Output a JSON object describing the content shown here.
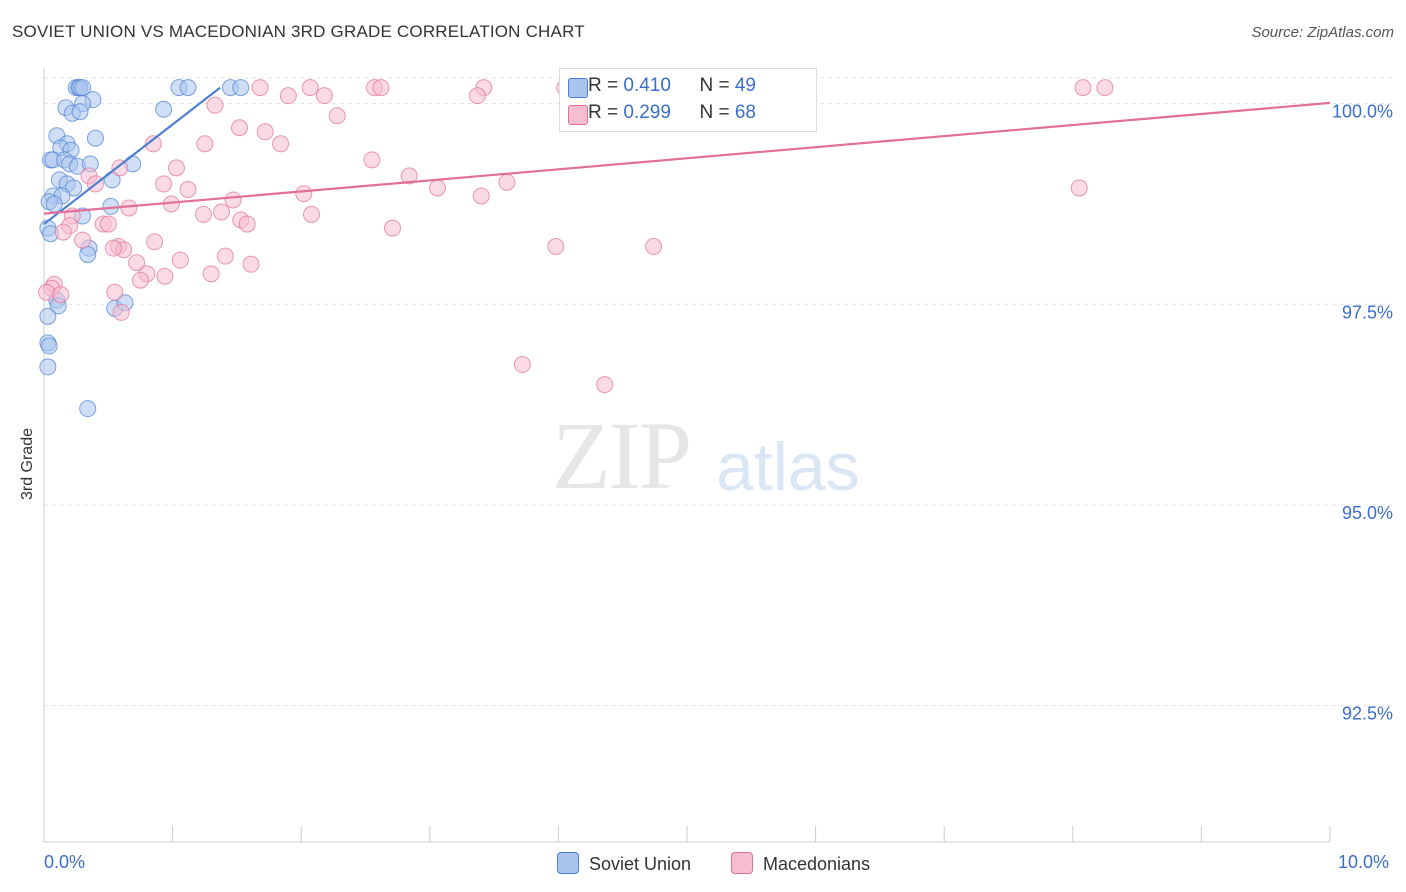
{
  "header": {
    "title": "SOVIET UNION VS MACEDONIAN 3RD GRADE CORRELATION CHART",
    "source": "Source: ZipAtlas.com"
  },
  "watermark": {
    "zip": "ZIP",
    "atlas": "atlas"
  },
  "legend": {
    "rows": [
      {
        "r_label": "R = ",
        "r_value": "0.410",
        "n_label": "N = ",
        "n_value": "49"
      },
      {
        "r_label": "R = ",
        "r_value": "0.299",
        "n_label": "N = ",
        "n_value": "68"
      }
    ]
  },
  "bottom_legend": [
    "Soviet Union",
    "Macedonians"
  ],
  "x_axis": {
    "min_label": "0.0%",
    "max_label": "10.0%"
  },
  "colors": {
    "blue": "#4a7fd1",
    "blue_fill": "#a9c5ee",
    "pink": "#e07097",
    "pink_fill": "#f6bccf",
    "grid": "#e3e3e3",
    "tick_label": "#3a6fc9"
  },
  "chart_data": {
    "type": "scatter",
    "title": "SOVIET UNION VS MACEDONIAN 3RD GRADE CORRELATION CHART",
    "xlabel": "",
    "ylabel": "3rd Grade",
    "xlim": [
      0,
      10
    ],
    "ylim": [
      90.8,
      100.32
    ],
    "y_ticks": [
      100.0,
      97.5,
      95.0,
      92.5
    ],
    "y_tick_labels": [
      "100.0%",
      "97.5%",
      "95.0%",
      "92.5%"
    ],
    "grid": true,
    "legend_position": "top-center",
    "series": [
      {
        "name": "Soviet Union",
        "r": 0.41,
        "n": 49,
        "trend": {
          "x": [
            0.0,
            1.37
          ],
          "y": [
            98.5,
            100.2
          ]
        },
        "points": [
          [
            0.25,
            100.2
          ],
          [
            0.27,
            100.2
          ],
          [
            0.28,
            100.2
          ],
          [
            0.3,
            100.2
          ],
          [
            1.05,
            100.2
          ],
          [
            1.12,
            100.2
          ],
          [
            1.45,
            100.2
          ],
          [
            1.53,
            100.2
          ],
          [
            0.38,
            100.05
          ],
          [
            0.3,
            100.0
          ],
          [
            0.17,
            99.95
          ],
          [
            0.22,
            99.88
          ],
          [
            0.28,
            99.9
          ],
          [
            0.93,
            99.93
          ],
          [
            0.1,
            99.6
          ],
          [
            0.4,
            99.57
          ],
          [
            0.18,
            99.5
          ],
          [
            0.13,
            99.45
          ],
          [
            0.21,
            99.42
          ],
          [
            0.05,
            99.3
          ],
          [
            0.07,
            99.3
          ],
          [
            0.16,
            99.3
          ],
          [
            0.2,
            99.25
          ],
          [
            0.26,
            99.22
          ],
          [
            0.36,
            99.25
          ],
          [
            0.69,
            99.25
          ],
          [
            0.12,
            99.05
          ],
          [
            0.18,
            99.0
          ],
          [
            0.23,
            98.95
          ],
          [
            0.07,
            98.85
          ],
          [
            0.14,
            98.85
          ],
          [
            0.53,
            99.05
          ],
          [
            0.04,
            98.78
          ],
          [
            0.08,
            98.75
          ],
          [
            0.3,
            98.6
          ],
          [
            0.52,
            98.72
          ],
          [
            0.03,
            98.45
          ],
          [
            0.05,
            98.38
          ],
          [
            0.35,
            98.2
          ],
          [
            0.34,
            98.12
          ],
          [
            0.1,
            97.55
          ],
          [
            0.11,
            97.48
          ],
          [
            0.55,
            97.45
          ],
          [
            0.63,
            97.52
          ],
          [
            0.03,
            97.35
          ],
          [
            0.03,
            97.02
          ],
          [
            0.04,
            96.98
          ],
          [
            0.03,
            96.72
          ],
          [
            0.34,
            96.2
          ]
        ]
      },
      {
        "name": "Macedonians",
        "r": 0.299,
        "n": 68,
        "trend": {
          "x": [
            0.0,
            10.0
          ],
          "y": [
            98.63,
            100.01
          ]
        },
        "points": [
          [
            1.68,
            100.2
          ],
          [
            2.07,
            100.2
          ],
          [
            2.57,
            100.2
          ],
          [
            2.62,
            100.2
          ],
          [
            3.42,
            100.2
          ],
          [
            4.05,
            100.2
          ],
          [
            8.08,
            100.2
          ],
          [
            8.25,
            100.2
          ],
          [
            1.9,
            100.1
          ],
          [
            2.18,
            100.1
          ],
          [
            3.37,
            100.1
          ],
          [
            1.33,
            99.98
          ],
          [
            2.28,
            99.85
          ],
          [
            1.52,
            99.7
          ],
          [
            1.72,
            99.65
          ],
          [
            0.85,
            99.5
          ],
          [
            1.25,
            99.5
          ],
          [
            1.84,
            99.5
          ],
          [
            2.55,
            99.3
          ],
          [
            2.84,
            99.1
          ],
          [
            1.03,
            99.2
          ],
          [
            0.59,
            99.2
          ],
          [
            0.35,
            99.1
          ],
          [
            0.4,
            99.0
          ],
          [
            0.93,
            99.0
          ],
          [
            1.12,
            98.93
          ],
          [
            2.02,
            98.88
          ],
          [
            3.06,
            98.95
          ],
          [
            3.6,
            99.02
          ],
          [
            3.4,
            98.85
          ],
          [
            8.05,
            98.95
          ],
          [
            0.66,
            98.7
          ],
          [
            0.99,
            98.75
          ],
          [
            1.47,
            98.8
          ],
          [
            1.24,
            98.62
          ],
          [
            0.22,
            98.6
          ],
          [
            1.38,
            98.65
          ],
          [
            1.53,
            98.55
          ],
          [
            2.08,
            98.62
          ],
          [
            0.46,
            98.5
          ],
          [
            0.5,
            98.5
          ],
          [
            1.58,
            98.5
          ],
          [
            0.2,
            98.48
          ],
          [
            0.15,
            98.4
          ],
          [
            0.3,
            98.3
          ],
          [
            2.71,
            98.45
          ],
          [
            0.86,
            98.28
          ],
          [
            0.58,
            98.22
          ],
          [
            0.62,
            98.18
          ],
          [
            0.54,
            98.2
          ],
          [
            0.72,
            98.02
          ],
          [
            0.8,
            97.88
          ],
          [
            1.06,
            98.05
          ],
          [
            1.41,
            98.1
          ],
          [
            1.61,
            98.0
          ],
          [
            1.3,
            97.88
          ],
          [
            0.94,
            97.85
          ],
          [
            0.75,
            97.8
          ],
          [
            0.55,
            97.65
          ],
          [
            0.08,
            97.75
          ],
          [
            0.06,
            97.7
          ],
          [
            0.02,
            97.65
          ],
          [
            0.13,
            97.62
          ],
          [
            3.98,
            98.22
          ],
          [
            4.74,
            98.22
          ],
          [
            3.72,
            96.75
          ],
          [
            4.36,
            96.5
          ],
          [
            0.6,
            97.4
          ]
        ]
      }
    ]
  }
}
